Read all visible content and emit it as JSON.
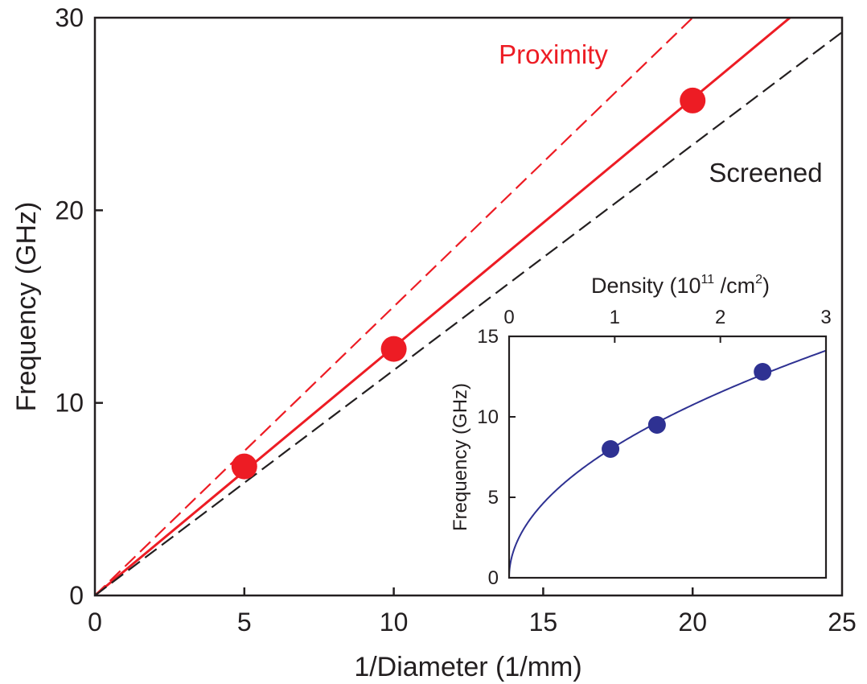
{
  "chart_data": [
    {
      "type": "line",
      "xlabel": "1/Diameter (1/mm)",
      "ylabel": "Frequency (GHz)",
      "xlim": [
        0,
        25
      ],
      "ylim": [
        0,
        30
      ],
      "xticks": [
        "0",
        "5",
        "10",
        "15",
        "20",
        "25"
      ],
      "yticks": [
        "0",
        "10",
        "20",
        "30"
      ],
      "grid": false,
      "annotations": [
        {
          "text": "Proximity",
          "color": "#ed1c24"
        },
        {
          "text": "Screened",
          "color": "#231f20"
        }
      ],
      "series": [
        {
          "style": "dashed",
          "color": "#ed1c24",
          "x": [
            0,
            25
          ],
          "y": [
            0,
            37.5
          ]
        },
        {
          "style": "solid",
          "color": "#ed1c24",
          "x": [
            0,
            25
          ],
          "y": [
            0,
            32.25
          ]
        },
        {
          "style": "dashed",
          "color": "#231f20",
          "x": [
            0,
            25
          ],
          "y": [
            0,
            29.25
          ]
        },
        {
          "style": "markers",
          "color": "#ed1c24",
          "x": [
            5,
            10,
            20
          ],
          "y": [
            6.7,
            12.8,
            25.7
          ]
        }
      ]
    },
    {
      "type": "line",
      "inset": true,
      "xlabel": "Density (10",
      "xlabel_exp": "11",
      "xlabel_unit": " /cm",
      "xlabel_exp2": "2",
      "xlabel_close": ")",
      "xlabel_position": "top",
      "ylabel": "Frequency (GHz)",
      "xlim": [
        0,
        3
      ],
      "ylim": [
        0,
        15
      ],
      "xticks": [
        "0",
        "1",
        "2",
        "3"
      ],
      "yticks": [
        "0",
        "5",
        "10",
        "15"
      ],
      "grid": false,
      "series": [
        {
          "style": "solid",
          "color": "#2e3192",
          "fit": "sqrt",
          "coefficient": 8.15,
          "x_range": [
            0,
            3
          ]
        },
        {
          "style": "markers",
          "color": "#2e3192",
          "x": [
            0.96,
            1.4,
            2.4
          ],
          "y": [
            8.0,
            9.5,
            12.8
          ]
        }
      ]
    }
  ]
}
